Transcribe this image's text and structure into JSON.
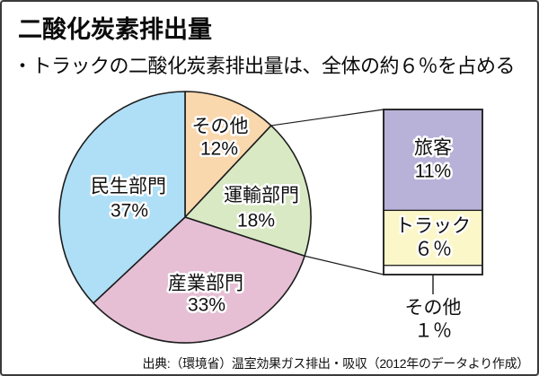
{
  "header": {
    "title": "二酸化炭素排出量",
    "subtitle": "・トラックの二酸化炭素排出量は、全体の約６％を占める"
  },
  "footer": {
    "source": "出典:（環境省）温室効果ガス排出・吸収（2012年のデータより作成）"
  },
  "chart_data": {
    "type": "pie",
    "title": "二酸化炭素排出量",
    "unit": "percent",
    "direction": "clockwise",
    "start_angle_deg": 0,
    "slices": [
      {
        "label": "その他",
        "value": 12,
        "value_label": "12%",
        "color": "#F9D8AE"
      },
      {
        "label": "運輸部門",
        "value": 18,
        "value_label": "18%",
        "color": "#D8E9C4"
      },
      {
        "label": "産業部門",
        "value": 33,
        "value_label": "33%",
        "color": "#E6BFD5"
      },
      {
        "label": "民生部門",
        "value": 37,
        "value_label": "37%",
        "color": "#AEDFF6"
      }
    ],
    "breakout_bar": {
      "parent_slice": "運輸部門",
      "total_value": 18,
      "segments": [
        {
          "label": "旅客",
          "value": 11,
          "value_label": "11%",
          "color": "#B8B2D9"
        },
        {
          "label": "トラック",
          "value": 6,
          "value_label": "６％",
          "color": "#FBF7C9"
        },
        {
          "label": "その他",
          "value": 1,
          "value_label": "１％",
          "color": "#FFFFFF"
        }
      ]
    },
    "line_color": "#1c1c1c"
  }
}
